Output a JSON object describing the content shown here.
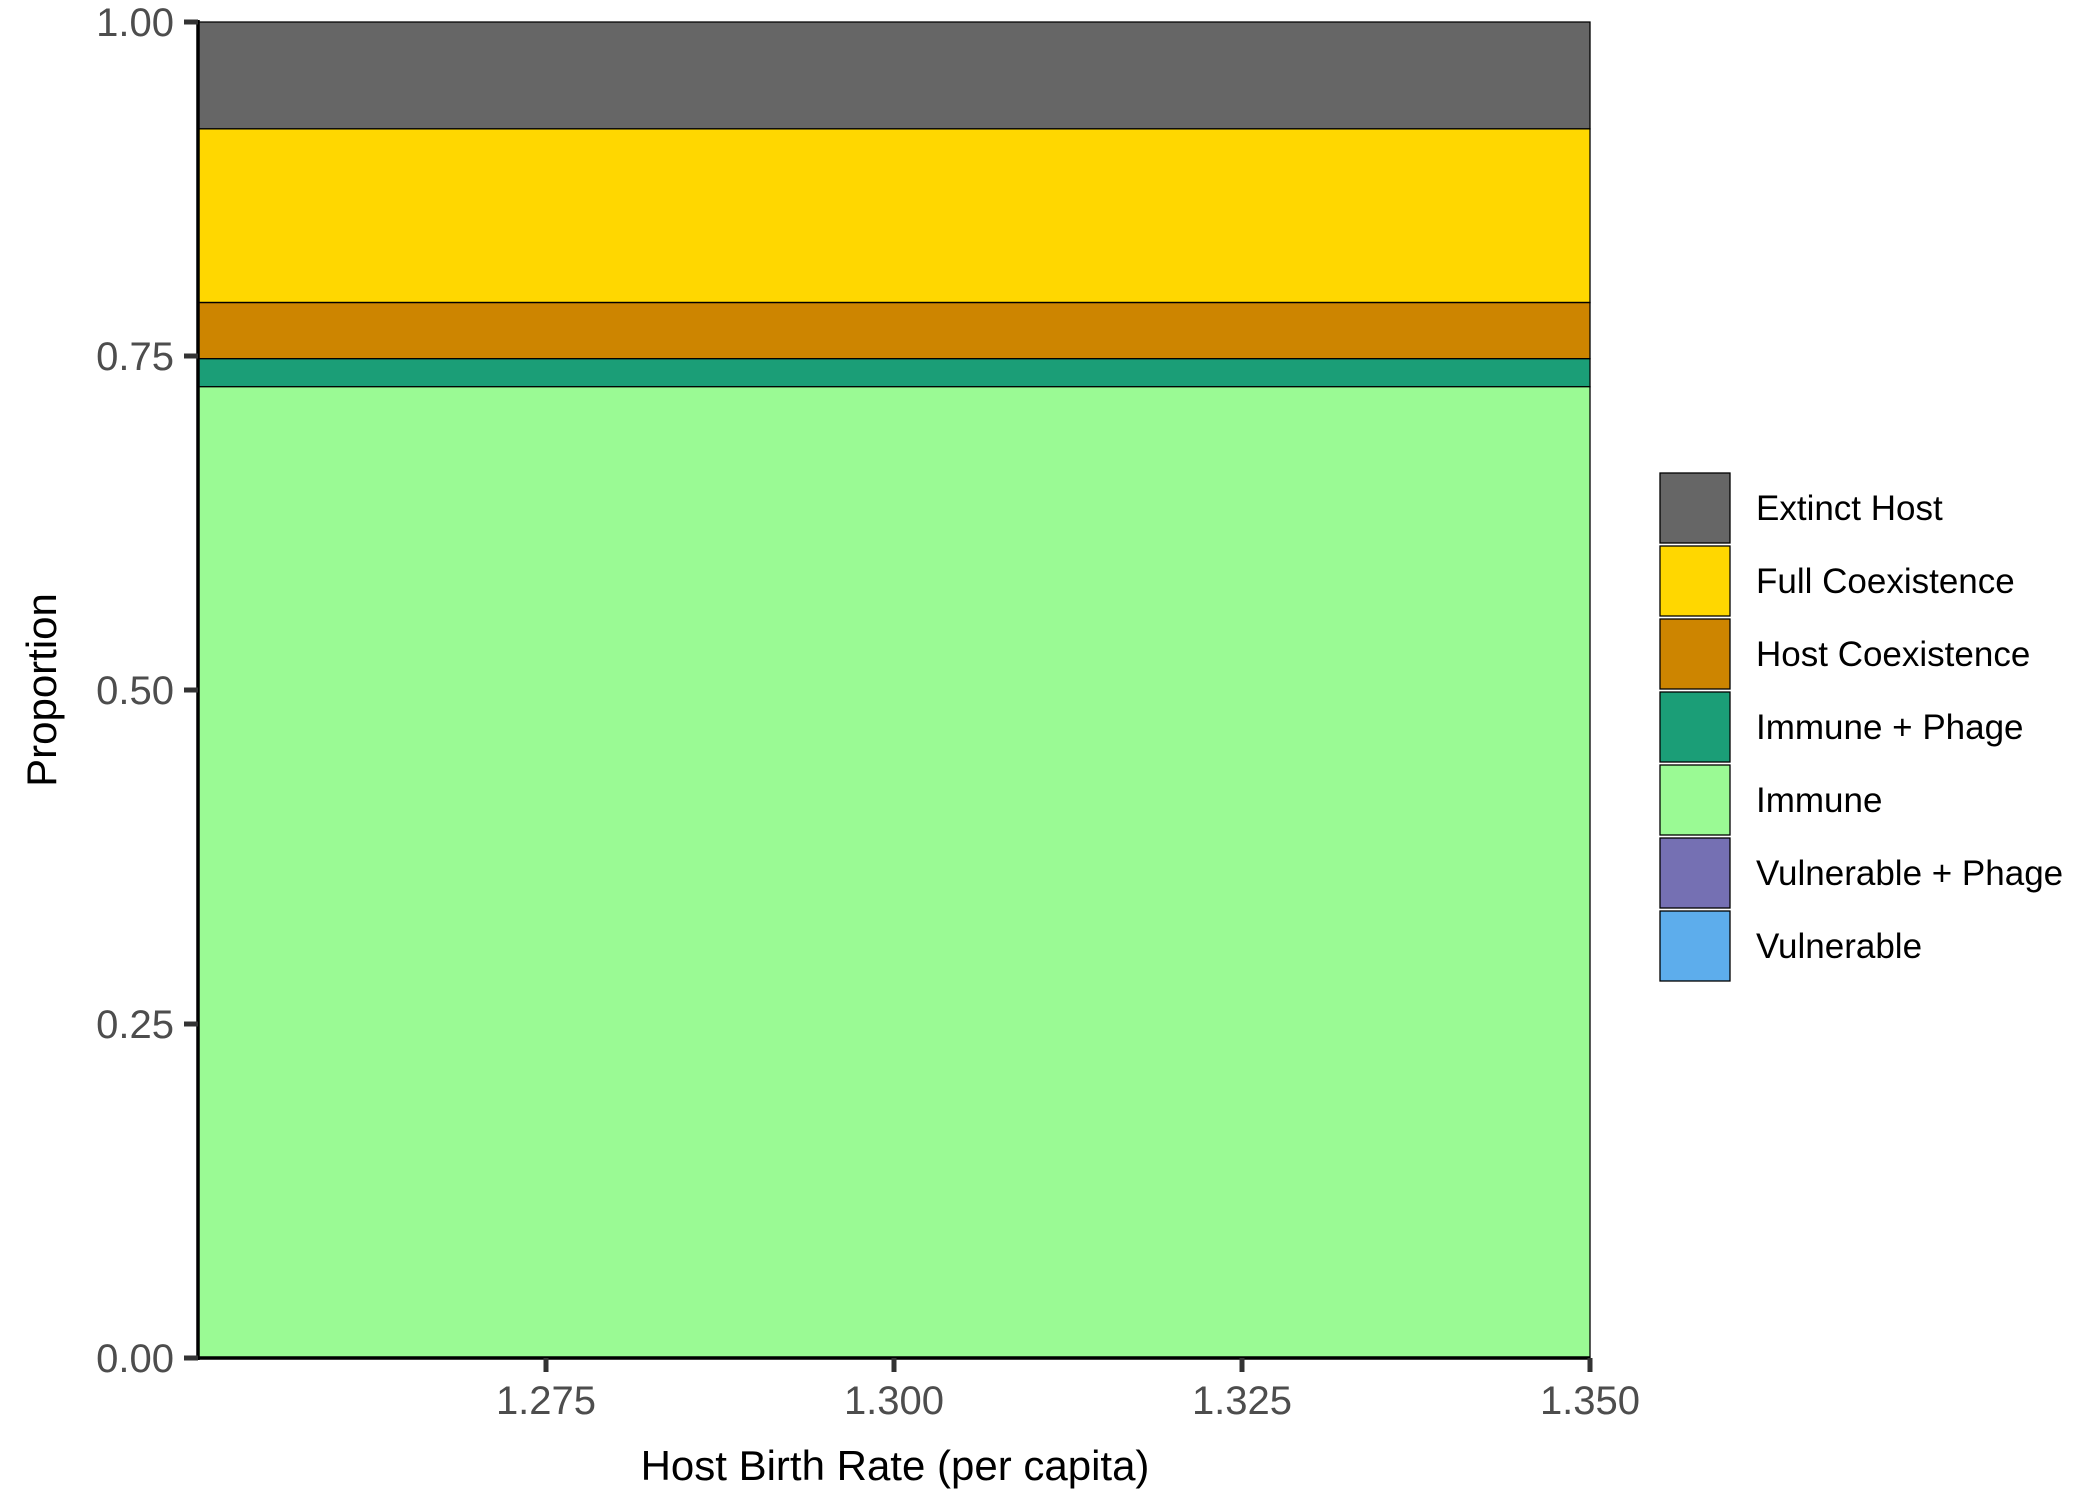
{
  "chart_data": {
    "type": "area",
    "stacked": true,
    "x": [
      1.25,
      1.35
    ],
    "xlabel": "Host Birth Rate (per capita)",
    "ylabel": "Proportion",
    "xlim": [
      1.25,
      1.35
    ],
    "ylim": [
      0,
      1
    ],
    "xticks": [
      1.275,
      1.3,
      1.325,
      1.35
    ],
    "xtick_labels": [
      "1.275",
      "1.300",
      "1.325",
      "1.350"
    ],
    "yticks": [
      0,
      0.25,
      0.5,
      0.75,
      1.0
    ],
    "ytick_labels": [
      "0.00",
      "0.25",
      "0.50",
      "0.75",
      "1.00"
    ],
    "grid": false,
    "legend_position": "right",
    "series": [
      {
        "name": "Extinct Host",
        "color": "#666666",
        "values": [
          0.08,
          0.08
        ]
      },
      {
        "name": "Full Coexistence",
        "color": "#FFD700",
        "values": [
          0.13,
          0.13
        ]
      },
      {
        "name": "Host Coexistence",
        "color": "#CD8500",
        "values": [
          0.042,
          0.042
        ]
      },
      {
        "name": "Immune + Phage",
        "color": "#1B9E77",
        "values": [
          0.021,
          0.021
        ]
      },
      {
        "name": "Immune",
        "color": "#9AFA94",
        "values": [
          0.727,
          0.727
        ]
      },
      {
        "name": "Vulnerable + Phage",
        "color": "#7570B3",
        "values": [
          0,
          0
        ]
      },
      {
        "name": "Vulnerable",
        "color": "#5DADEC",
        "values": [
          0,
          0
        ]
      }
    ]
  }
}
